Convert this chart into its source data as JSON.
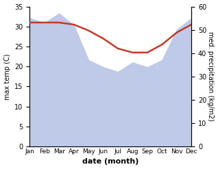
{
  "months": [
    "Jan",
    "Feb",
    "Mar",
    "Apr",
    "May",
    "Jun",
    "Jul",
    "Aug",
    "Sep",
    "Oct",
    "Nov",
    "Dec"
  ],
  "temp": [
    31.0,
    31.0,
    31.0,
    30.5,
    29.0,
    27.0,
    24.5,
    23.5,
    23.5,
    25.5,
    28.5,
    30.5
  ],
  "precip_mm": [
    55.0,
    53.0,
    57.0,
    52.0,
    37.0,
    34.0,
    32.0,
    36.0,
    34.0,
    37.0,
    50.0,
    55.0
  ],
  "temp_color": "#c0392b",
  "precip_fill_color": "#bfc9e8",
  "ylim_left": [
    0,
    35
  ],
  "ylim_right": [
    0,
    60
  ],
  "xlabel": "date (month)",
  "ylabel_left": "max temp (C)",
  "ylabel_right": "med. precipitation (kg/m2)",
  "bg_color": "#ffffff"
}
